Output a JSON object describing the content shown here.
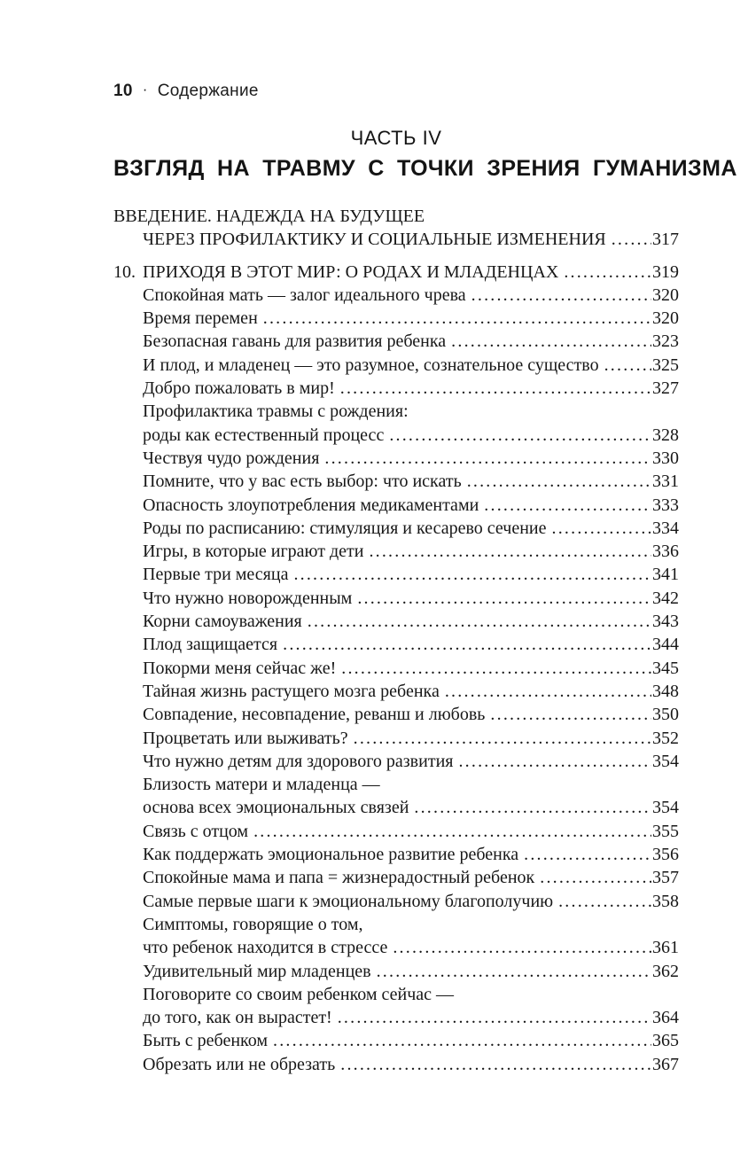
{
  "page": {
    "header": {
      "page_number": "10",
      "separator": "·",
      "section_title": "Содержание"
    },
    "part": {
      "label": "ЧАСТЬ IV",
      "title": "ВЗГЛЯД НА ТРАВМУ С ТОЧКИ ЗРЕНИЯ ГУМАНИЗМА"
    },
    "toc": [
      {
        "text": "ВВЕДЕНИЕ. НАДЕЖДА НА БУДУЩЕЕ",
        "caps": true,
        "indent": 0
      },
      {
        "text": "ЧЕРЕЗ ПРОФИЛАКТИКУ И СОЦИАЛЬНЫЕ ИЗМЕНЕНИЯ",
        "caps": true,
        "page": "317",
        "gap_after": true
      },
      {
        "num": "10.",
        "text": "ПРИХОДЯ В ЭТОТ МИР: О РОДАХ И МЛАДЕНЦАХ",
        "caps": true,
        "page": "319"
      },
      {
        "text": "Спокойная мать — залог идеального чрева",
        "page": "320"
      },
      {
        "text": "Время перемен",
        "page": "320"
      },
      {
        "text": "Безопасная гавань для развития ребенка",
        "page": "323"
      },
      {
        "text": "И плод, и младенец — это разумное, сознательное существо",
        "page": "325"
      },
      {
        "text": "Добро пожаловать в мир!",
        "page": "327"
      },
      {
        "text": "Профилактика травмы с рождения:"
      },
      {
        "text": "роды как естественный процесс",
        "page": "328"
      },
      {
        "text": "Чествуя чудо рождения",
        "page": "330"
      },
      {
        "text": "Помните, что у вас есть выбор: что искать",
        "page": "331"
      },
      {
        "text": "Опасность злоупотребления медикаментами",
        "page": "333"
      },
      {
        "text": "Роды по расписанию: стимуляция и кесарево сечение",
        "page": "334"
      },
      {
        "text": "Игры, в которые играют дети",
        "page": "336"
      },
      {
        "text": "Первые три месяца",
        "page": "341"
      },
      {
        "text": "Что нужно новорожденным",
        "page": "342"
      },
      {
        "text": "Корни самоуважения",
        "page": "343"
      },
      {
        "text": "Плод защищается",
        "page": "344"
      },
      {
        "text": "Покорми меня сейчас же!",
        "page": "345"
      },
      {
        "text": "Тайная жизнь растущего мозга ребенка",
        "page": "348"
      },
      {
        "text": "Совпадение, несовпадение, реванш и любовь",
        "page": "350"
      },
      {
        "text": "Процветать или выживать?",
        "page": "352"
      },
      {
        "text": "Что нужно детям для здорового развития",
        "page": "354"
      },
      {
        "text": "Близость матери и младенца —"
      },
      {
        "text": "основа всех эмоциональных связей",
        "page": "354"
      },
      {
        "text": "Связь с отцом",
        "page": "355"
      },
      {
        "text": "Как поддержать эмоциональное развитие ребенка",
        "page": "356"
      },
      {
        "text": "Спокойные мама и папа = жизнерадостный ребенок",
        "page": "357"
      },
      {
        "text": "Самые первые шаги к эмоциональному благополучию",
        "page": "358"
      },
      {
        "text": "Симптомы, говорящие о том,"
      },
      {
        "text": "что ребенок находится в стрессе",
        "page": "361"
      },
      {
        "text": "Удивительный мир младенцев",
        "page": "362"
      },
      {
        "text": "Поговорите со своим ребенком сейчас —"
      },
      {
        "text": "до того, как он вырастет!",
        "page": "364"
      },
      {
        "text": "Быть с ребенком",
        "page": "365"
      },
      {
        "text": "Обрезать или не обрезать",
        "page": "367"
      }
    ]
  }
}
